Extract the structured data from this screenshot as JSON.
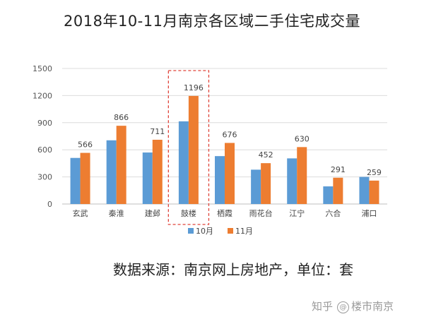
{
  "chart_data": {
    "type": "bar",
    "title": "2018年10-11月南京各区域二手住宅成交量",
    "categories": [
      "玄武",
      "秦淮",
      "建邺",
      "鼓楼",
      "栖霞",
      "雨花台",
      "江宁",
      "六合",
      "浦口"
    ],
    "series": [
      {
        "name": "10月",
        "values": [
          510,
          705,
          570,
          915,
          530,
          380,
          505,
          195,
          300
        ],
        "color": "#5B9BD5"
      },
      {
        "name": "11月",
        "values": [
          566,
          866,
          711,
          1196,
          676,
          452,
          630,
          291,
          259
        ],
        "color": "#ED7D31"
      }
    ],
    "data_labels": [
      566,
      866,
      711,
      1196,
      676,
      452,
      630,
      291,
      259
    ],
    "yticks": [
      0,
      300,
      600,
      900,
      1200,
      1500
    ],
    "ylim": [
      0,
      1500
    ],
    "xlabel": "",
    "ylabel": "",
    "grid": true,
    "legend_position": "bottom",
    "highlight_category": "鼓楼",
    "highlight_color": "#E0443A"
  },
  "footer": {
    "source_note": "数据来源：南京网上房地产，单位：套",
    "watermark_prefix": "知乎",
    "watermark_name": "楼市南京",
    "watermark_icon": "@"
  }
}
